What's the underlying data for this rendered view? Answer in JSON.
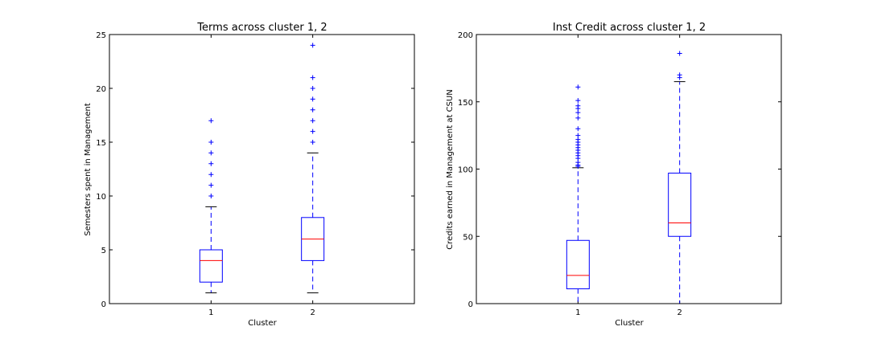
{
  "colors": {
    "box": "#0000ff",
    "median": "#ff0000",
    "whisker": "#0000ff",
    "flier": "#0000ff",
    "axes": "#000000",
    "background": "#ffffff"
  },
  "chart_data": [
    {
      "type": "box",
      "title": "Terms across cluster 1, 2",
      "xlabel": "Cluster",
      "ylabel": "Semesters spent in Management",
      "categories": [
        "1",
        "2"
      ],
      "ylim": [
        0,
        25
      ],
      "yticks": [
        0,
        5,
        10,
        15,
        20,
        25
      ],
      "grid": false,
      "boxes": [
        {
          "category": "1",
          "whisker_low": 1,
          "q1": 2,
          "median": 4,
          "q3": 5,
          "whisker_high": 9,
          "fliers": [
            10,
            11,
            12,
            13,
            14,
            15,
            17
          ]
        },
        {
          "category": "2",
          "whisker_low": 1,
          "q1": 4,
          "median": 6,
          "q3": 8,
          "whisker_high": 14,
          "fliers": [
            15,
            16,
            17,
            18,
            19,
            20,
            21,
            24
          ]
        }
      ]
    },
    {
      "type": "box",
      "title": "Inst Credit across cluster 1, 2",
      "xlabel": "Cluster",
      "ylabel": "Credits earned in Management at CSUN",
      "categories": [
        "1",
        "2"
      ],
      "ylim": [
        0,
        200
      ],
      "yticks": [
        0,
        50,
        100,
        150,
        200
      ],
      "grid": false,
      "boxes": [
        {
          "category": "1",
          "whisker_low": 0,
          "q1": 11,
          "median": 21,
          "q3": 47,
          "whisker_high": 101,
          "fliers": [
            102,
            103,
            105,
            108,
            110,
            112,
            114,
            116,
            118,
            120,
            122,
            125,
            130,
            138,
            142,
            145,
            147,
            151,
            161
          ]
        },
        {
          "category": "2",
          "whisker_low": 0,
          "q1": 50,
          "median": 60,
          "q3": 97,
          "whisker_high": 165,
          "fliers": [
            168,
            170,
            186
          ]
        }
      ]
    }
  ]
}
